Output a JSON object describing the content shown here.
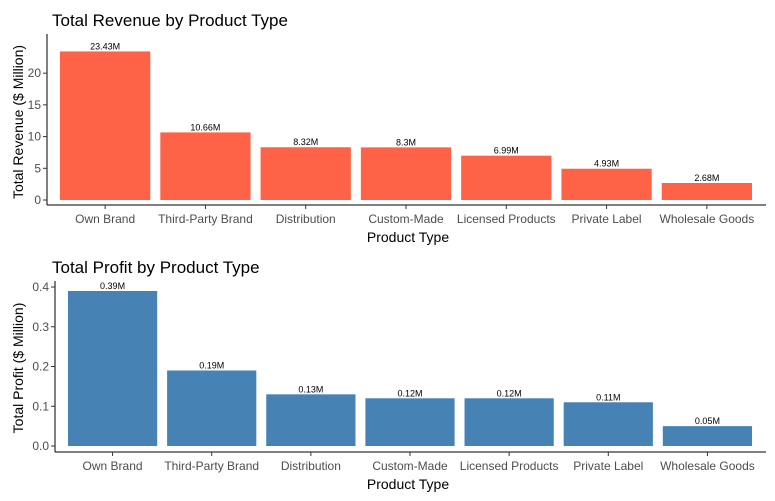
{
  "chart_data": [
    {
      "type": "bar",
      "title": "Total Revenue by Product Type",
      "xlabel": "Product Type",
      "ylabel": "Total Revenue ($ Million)",
      "categories": [
        "Own Brand",
        "Third-Party Brand",
        "Distribution",
        "Custom-Made",
        "Licensed Products",
        "Private Label",
        "Wholesale Goods"
      ],
      "values": [
        23.43,
        10.66,
        8.32,
        8.3,
        6.99,
        4.93,
        2.68
      ],
      "data_labels": [
        "23.43M",
        "10.66M",
        "8.32M",
        "8.3M",
        "6.99M",
        "4.93M",
        "2.68M"
      ],
      "ylim": [
        0,
        24.6
      ],
      "yticks": [
        0,
        5,
        10,
        15,
        20
      ],
      "grid": false,
      "bar_color": "#FF6347"
    },
    {
      "type": "bar",
      "title": "Total Profit by Product Type",
      "xlabel": "Product Type",
      "ylabel": "Total Profit ($ Million)",
      "categories": [
        "Own Brand",
        "Third-Party Brand",
        "Distribution",
        "Custom-Made",
        "Licensed Products",
        "Private Label",
        "Wholesale Goods"
      ],
      "values": [
        0.39,
        0.19,
        0.13,
        0.12,
        0.12,
        0.11,
        0.05
      ],
      "data_labels": [
        "0.39M",
        "0.19M",
        "0.13M",
        "0.12M",
        "0.12M",
        "0.11M",
        "0.05M"
      ],
      "ylim": [
        0,
        0.39
      ],
      "yticks": [
        0.0,
        0.1,
        0.2,
        0.3,
        0.4
      ],
      "ytick_labels": [
        "0.0",
        "0.1",
        "0.2",
        "0.3",
        "0.4"
      ],
      "grid": false,
      "bar_color": "#4682B4"
    }
  ]
}
